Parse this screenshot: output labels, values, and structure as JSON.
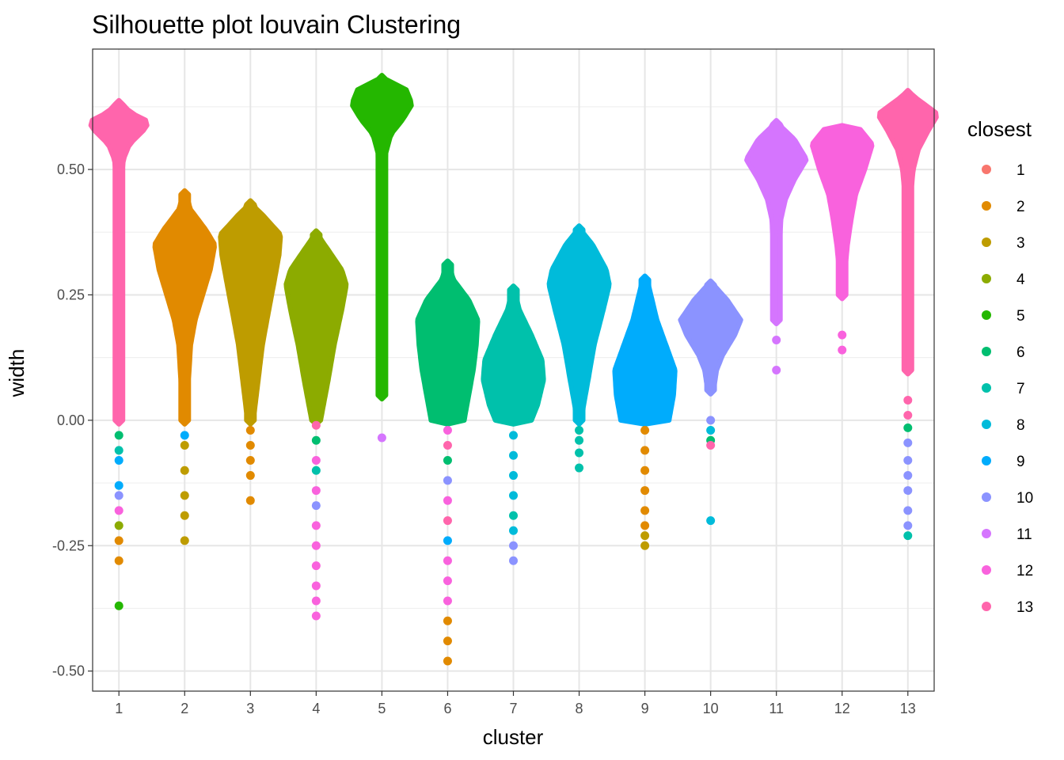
{
  "chart_data": {
    "type": "scatter",
    "title": "Silhouette plot louvain Clustering",
    "xlabel": "cluster",
    "ylabel": "width",
    "categories": [
      "1",
      "2",
      "3",
      "4",
      "5",
      "6",
      "7",
      "8",
      "9",
      "10",
      "11",
      "12",
      "13"
    ],
    "yticks": [
      -0.5,
      -0.25,
      0,
      0.25,
      0.5
    ],
    "ytick_labels": [
      "-0.50",
      "-0.25",
      "0.00",
      "0.25",
      "0.50"
    ],
    "ylim": [
      -0.54,
      0.74
    ],
    "grid": true,
    "legend": {
      "title": "closest",
      "placement": "right",
      "entries": [
        "1",
        "2",
        "3",
        "4",
        "5",
        "6",
        "7",
        "8",
        "9",
        "10",
        "11",
        "12",
        "13"
      ],
      "colors": [
        "#F8766D",
        "#E18A00",
        "#BE9C00",
        "#8CAB00",
        "#24B700",
        "#00BE70",
        "#00C1AB",
        "#00BBDA",
        "#00ACFC",
        "#8B93FF",
        "#D575FE",
        "#F962DD",
        "#FF65AC"
      ]
    },
    "series": [
      {
        "cluster": "1",
        "main_closest": "13",
        "max": 0.63,
        "peak": 0.59,
        "min": -0.37,
        "profile": [
          [
            0.63,
            0.05
          ],
          [
            0.61,
            0.5
          ],
          [
            0.595,
            1.0
          ],
          [
            0.58,
            0.85
          ],
          [
            0.55,
            0.35
          ],
          [
            0.52,
            0.15
          ],
          [
            0.48,
            0.08
          ],
          [
            0.3,
            0.05
          ],
          [
            0.1,
            0.04
          ],
          [
            0.0,
            0.03
          ]
        ],
        "outliers": [
          {
            "y": -0.03,
            "c": "6"
          },
          {
            "y": -0.06,
            "c": "7"
          },
          {
            "y": -0.08,
            "c": "9"
          },
          {
            "y": -0.13,
            "c": "9"
          },
          {
            "y": -0.15,
            "c": "10"
          },
          {
            "y": -0.18,
            "c": "12"
          },
          {
            "y": -0.21,
            "c": "4"
          },
          {
            "y": -0.24,
            "c": "2"
          },
          {
            "y": -0.28,
            "c": "2"
          },
          {
            "y": -0.37,
            "c": "5"
          }
        ]
      },
      {
        "cluster": "2",
        "main_closest": "2",
        "max": 0.45,
        "peak": 0.35,
        "min": -0.24,
        "profile": [
          [
            0.45,
            0.03
          ],
          [
            0.42,
            0.2
          ],
          [
            0.38,
            0.7
          ],
          [
            0.35,
            1.0
          ],
          [
            0.3,
            0.85
          ],
          [
            0.25,
            0.6
          ],
          [
            0.2,
            0.35
          ],
          [
            0.15,
            0.2
          ],
          [
            0.05,
            0.1
          ],
          [
            0.0,
            0.06
          ]
        ],
        "outliers": [
          {
            "y": -0.03,
            "c": "9"
          },
          {
            "y": -0.05,
            "c": "3"
          },
          {
            "y": -0.1,
            "c": "3"
          },
          {
            "y": -0.15,
            "c": "3"
          },
          {
            "y": -0.19,
            "c": "3"
          },
          {
            "y": -0.24,
            "c": "3"
          }
        ]
      },
      {
        "cluster": "3",
        "main_closest": "3",
        "max": 0.43,
        "peak": 0.36,
        "min": -0.16,
        "profile": [
          [
            0.43,
            0.05
          ],
          [
            0.41,
            0.4
          ],
          [
            0.37,
            1.0
          ],
          [
            0.33,
            0.95
          ],
          [
            0.28,
            0.8
          ],
          [
            0.2,
            0.55
          ],
          [
            0.15,
            0.4
          ],
          [
            0.05,
            0.2
          ],
          [
            0.0,
            0.1
          ]
        ],
        "outliers": [
          {
            "y": -0.02,
            "c": "2"
          },
          {
            "y": -0.05,
            "c": "2"
          },
          {
            "y": -0.08,
            "c": "2"
          },
          {
            "y": -0.11,
            "c": "2"
          },
          {
            "y": -0.16,
            "c": "2"
          }
        ]
      },
      {
        "cluster": "4",
        "main_closest": "4",
        "max": 0.37,
        "peak": 0.28,
        "min": -0.39,
        "profile": [
          [
            0.37,
            0.05
          ],
          [
            0.34,
            0.4
          ],
          [
            0.3,
            0.85
          ],
          [
            0.27,
            1.0
          ],
          [
            0.22,
            0.85
          ],
          [
            0.15,
            0.6
          ],
          [
            0.08,
            0.4
          ],
          [
            0.0,
            0.15
          ]
        ],
        "outliers": [
          {
            "y": -0.01,
            "c": "13"
          },
          {
            "y": -0.04,
            "c": "6"
          },
          {
            "y": -0.08,
            "c": "12"
          },
          {
            "y": -0.1,
            "c": "7"
          },
          {
            "y": -0.14,
            "c": "12"
          },
          {
            "y": -0.17,
            "c": "10"
          },
          {
            "y": -0.21,
            "c": "12"
          },
          {
            "y": -0.25,
            "c": "12"
          },
          {
            "y": -0.29,
            "c": "12"
          },
          {
            "y": -0.33,
            "c": "12"
          },
          {
            "y": -0.36,
            "c": "12"
          },
          {
            "y": -0.39,
            "c": "12"
          }
        ]
      },
      {
        "cluster": "5",
        "main_closest": "5",
        "max": 0.68,
        "peak": 0.64,
        "min": -0.04,
        "profile": [
          [
            0.68,
            0.1
          ],
          [
            0.66,
            0.8
          ],
          [
            0.63,
            1.0
          ],
          [
            0.6,
            0.7
          ],
          [
            0.57,
            0.3
          ],
          [
            0.53,
            0.12
          ],
          [
            0.45,
            0.07
          ],
          [
            0.3,
            0.05
          ],
          [
            0.2,
            0.04
          ],
          [
            0.05,
            0.03
          ]
        ],
        "outliers": [
          {
            "y": 0.1,
            "c": "5"
          },
          {
            "y": 0.075,
            "c": "5"
          },
          {
            "y": 0.055,
            "c": "5"
          },
          {
            "y": -0.035,
            "c": "11"
          }
        ]
      },
      {
        "cluster": "6",
        "main_closest": "6",
        "max": 0.31,
        "peak": 0.2,
        "min": -0.48,
        "profile": [
          [
            0.31,
            0.03
          ],
          [
            0.28,
            0.2
          ],
          [
            0.24,
            0.7
          ],
          [
            0.2,
            1.0
          ],
          [
            0.15,
            0.95
          ],
          [
            0.1,
            0.85
          ],
          [
            0.05,
            0.7
          ],
          [
            0.0,
            0.55
          ]
        ],
        "outliers": [
          {
            "y": -0.02,
            "c": "12"
          },
          {
            "y": -0.05,
            "c": "13"
          },
          {
            "y": -0.08,
            "c": "6"
          },
          {
            "y": -0.12,
            "c": "10"
          },
          {
            "y": -0.16,
            "c": "12"
          },
          {
            "y": -0.2,
            "c": "13"
          },
          {
            "y": -0.24,
            "c": "9"
          },
          {
            "y": -0.28,
            "c": "12"
          },
          {
            "y": -0.32,
            "c": "12"
          },
          {
            "y": -0.36,
            "c": "12"
          },
          {
            "y": -0.4,
            "c": "2"
          },
          {
            "y": -0.44,
            "c": "2"
          },
          {
            "y": -0.48,
            "c": "2"
          }
        ]
      },
      {
        "cluster": "7",
        "main_closest": "7",
        "max": 0.26,
        "peak": 0.1,
        "min": -0.28,
        "profile": [
          [
            0.26,
            0.03
          ],
          [
            0.22,
            0.2
          ],
          [
            0.17,
            0.6
          ],
          [
            0.12,
            0.95
          ],
          [
            0.08,
            1.0
          ],
          [
            0.03,
            0.8
          ],
          [
            0.0,
            0.6
          ]
        ],
        "outliers": [
          {
            "y": -0.03,
            "c": "8"
          },
          {
            "y": -0.07,
            "c": "8"
          },
          {
            "y": -0.11,
            "c": "8"
          },
          {
            "y": -0.15,
            "c": "8"
          },
          {
            "y": -0.19,
            "c": "7"
          },
          {
            "y": -0.22,
            "c": "8"
          },
          {
            "y": -0.25,
            "c": "10"
          },
          {
            "y": -0.28,
            "c": "10"
          }
        ]
      },
      {
        "cluster": "8",
        "main_closest": "8",
        "max": 0.38,
        "peak": 0.28,
        "min": -0.1,
        "profile": [
          [
            0.38,
            0.05
          ],
          [
            0.35,
            0.45
          ],
          [
            0.3,
            0.9
          ],
          [
            0.27,
            1.0
          ],
          [
            0.22,
            0.8
          ],
          [
            0.15,
            0.5
          ],
          [
            0.08,
            0.3
          ],
          [
            0.03,
            0.15
          ],
          [
            0.0,
            0.07
          ]
        ],
        "outliers": [
          {
            "y": -0.02,
            "c": "7"
          },
          {
            "y": -0.04,
            "c": "7"
          },
          {
            "y": -0.065,
            "c": "7"
          },
          {
            "y": -0.095,
            "c": "7"
          }
        ]
      },
      {
        "cluster": "9",
        "main_closest": "9",
        "max": 0.28,
        "peak": 0.1,
        "min": -0.25,
        "profile": [
          [
            0.28,
            0.08
          ],
          [
            0.25,
            0.2
          ],
          [
            0.2,
            0.4
          ],
          [
            0.15,
            0.7
          ],
          [
            0.1,
            1.0
          ],
          [
            0.05,
            0.95
          ],
          [
            0.0,
            0.8
          ]
        ],
        "outliers": [
          {
            "y": -0.02,
            "c": "2"
          },
          {
            "y": -0.06,
            "c": "2"
          },
          {
            "y": -0.1,
            "c": "2"
          },
          {
            "y": -0.14,
            "c": "2"
          },
          {
            "y": -0.18,
            "c": "2"
          },
          {
            "y": -0.21,
            "c": "2"
          },
          {
            "y": -0.23,
            "c": "3"
          },
          {
            "y": -0.25,
            "c": "3"
          }
        ]
      },
      {
        "cluster": "10",
        "main_closest": "10",
        "max": 0.27,
        "peak": 0.19,
        "min": -0.2,
        "profile": [
          [
            0.27,
            0.1
          ],
          [
            0.24,
            0.55
          ],
          [
            0.2,
            1.0
          ],
          [
            0.17,
            0.8
          ],
          [
            0.13,
            0.4
          ],
          [
            0.1,
            0.2
          ],
          [
            0.06,
            0.1
          ]
        ],
        "outliers": [
          {
            "y": 0.0,
            "c": "10"
          },
          {
            "y": -0.02,
            "c": "8"
          },
          {
            "y": -0.04,
            "c": "6"
          },
          {
            "y": -0.05,
            "c": "13"
          },
          {
            "y": -0.2,
            "c": "8"
          }
        ]
      },
      {
        "cluster": "11",
        "main_closest": "11",
        "max": 0.59,
        "peak": 0.52,
        "min": 0.1,
        "profile": [
          [
            0.59,
            0.08
          ],
          [
            0.56,
            0.6
          ],
          [
            0.52,
            1.0
          ],
          [
            0.48,
            0.6
          ],
          [
            0.44,
            0.3
          ],
          [
            0.4,
            0.15
          ],
          [
            0.3,
            0.08
          ],
          [
            0.2,
            0.06
          ]
        ],
        "outliers": [
          {
            "y": 0.16,
            "c": "11"
          },
          {
            "y": 0.1,
            "c": "11"
          }
        ]
      },
      {
        "cluster": "12",
        "main_closest": "12",
        "max": 0.58,
        "peak": 0.55,
        "min": 0.14,
        "profile": [
          [
            0.58,
            0.6
          ],
          [
            0.55,
            1.0
          ],
          [
            0.5,
            0.75
          ],
          [
            0.45,
            0.45
          ],
          [
            0.4,
            0.3
          ],
          [
            0.35,
            0.18
          ],
          [
            0.3,
            0.1
          ],
          [
            0.25,
            0.05
          ]
        ],
        "outliers": [
          {
            "y": 0.17,
            "c": "12"
          },
          {
            "y": 0.14,
            "c": "12"
          }
        ]
      },
      {
        "cluster": "13",
        "main_closest": "13",
        "max": 0.65,
        "peak": 0.61,
        "min": -0.23,
        "profile": [
          [
            0.65,
            0.1
          ],
          [
            0.63,
            0.55
          ],
          [
            0.61,
            1.0
          ],
          [
            0.58,
            0.7
          ],
          [
            0.54,
            0.35
          ],
          [
            0.5,
            0.18
          ],
          [
            0.45,
            0.1
          ],
          [
            0.35,
            0.06
          ],
          [
            0.25,
            0.05
          ],
          [
            0.1,
            0.04
          ]
        ],
        "outliers": [
          {
            "y": 0.04,
            "c": "13"
          },
          {
            "y": 0.01,
            "c": "13"
          },
          {
            "y": -0.015,
            "c": "6"
          },
          {
            "y": -0.045,
            "c": "10"
          },
          {
            "y": -0.08,
            "c": "10"
          },
          {
            "y": -0.11,
            "c": "10"
          },
          {
            "y": -0.14,
            "c": "10"
          },
          {
            "y": -0.18,
            "c": "10"
          },
          {
            "y": -0.21,
            "c": "10"
          },
          {
            "y": -0.23,
            "c": "7"
          }
        ]
      }
    ]
  }
}
